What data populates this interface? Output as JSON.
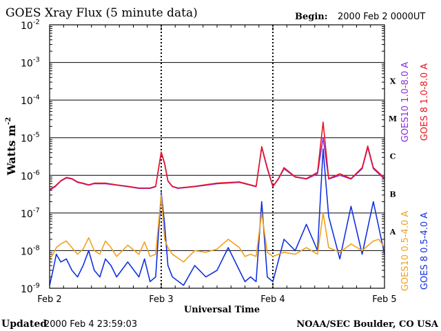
{
  "header": {
    "title": "GOES Xray Flux (5 minute data)",
    "begin_label": "Begin:",
    "begin_value": "2000 Feb 2 0000UT"
  },
  "footer": {
    "updated_label": "Updated",
    "updated_value": "2000 Feb  4 23:59:03",
    "credit": "NOAA/SEC Boulder, CO USA"
  },
  "colors": {
    "goes10_long": "#8a2be2",
    "goes8_long": "#e8141e",
    "goes10_short": "#f2a01c",
    "goes8_short": "#1030e0",
    "frame": "#000000",
    "day_divider": "#000000"
  },
  "chart_data": {
    "type": "line",
    "title": "GOES Xray Flux (5 minute data)",
    "xlabel": "Universal Time",
    "ylabel": "Watts m",
    "ylabel_superscript": "-2",
    "yscale": "log",
    "ylim": [
      1e-09,
      0.01
    ],
    "xlim": [
      0,
      3
    ],
    "y_ticks": [
      {
        "base": "10",
        "exp": "-2",
        "value": 0.01
      },
      {
        "base": "10",
        "exp": "-3",
        "value": 0.001
      },
      {
        "base": "10",
        "exp": "-4",
        "value": 0.0001
      },
      {
        "base": "10",
        "exp": "-5",
        "value": 1e-05
      },
      {
        "base": "10",
        "exp": "-6",
        "value": 1e-06
      },
      {
        "base": "10",
        "exp": "-7",
        "value": 1e-07
      },
      {
        "base": "10",
        "exp": "-8",
        "value": 1e-08
      },
      {
        "base": "10",
        "exp": "-9",
        "value": 1e-09
      }
    ],
    "x_ticks": [
      {
        "label": "Feb 2",
        "value": 0
      },
      {
        "label": "Feb 3",
        "value": 1
      },
      {
        "label": "Feb 4",
        "value": 2
      },
      {
        "label": "Feb 5",
        "value": 3
      }
    ],
    "flare_classes": [
      {
        "label": "X",
        "value": 0.00032
      },
      {
        "label": "M",
        "value": 3.2e-05
      },
      {
        "label": "C",
        "value": 3.2e-06
      },
      {
        "label": "B",
        "value": 3.2e-07
      },
      {
        "label": "A",
        "value": 3.2e-08
      }
    ],
    "grid": true,
    "series": [
      {
        "name": "GOES10 1.0-8.0 A",
        "color": "#8a2be2",
        "x": [
          0,
          0.05,
          0.1,
          0.15,
          0.2,
          0.25,
          0.3,
          0.35,
          0.4,
          0.5,
          0.6,
          0.7,
          0.8,
          0.9,
          0.95,
          1.0,
          1.03,
          1.06,
          1.1,
          1.15,
          1.3,
          1.5,
          1.7,
          1.85,
          1.9,
          1.95,
          2.0,
          2.05,
          2.1,
          2.2,
          2.3,
          2.4,
          2.45,
          2.5,
          2.6,
          2.7,
          2.8,
          2.85,
          2.9,
          3.0
        ],
        "y": [
          4e-07,
          5e-07,
          7e-07,
          8.5e-07,
          8e-07,
          6.5e-07,
          6e-07,
          5.5e-07,
          6e-07,
          6e-07,
          5.5e-07,
          5e-07,
          4.5e-07,
          4.5e-07,
          5e-07,
          4e-06,
          2e-06,
          7e-07,
          5e-07,
          4.5e-07,
          5e-07,
          6e-07,
          6.5e-07,
          5e-07,
          5.5e-06,
          1.5e-06,
          5e-07,
          8e-07,
          1.5e-06,
          9e-07,
          8e-07,
          1.1e-06,
          1e-05,
          8e-07,
          1e-06,
          8e-07,
          1.5e-06,
          5.5e-06,
          1.5e-06,
          8e-07
        ]
      },
      {
        "name": "GOES 8 1.0-8.0 A",
        "color": "#e8141e",
        "x": [
          0,
          0.05,
          0.1,
          0.15,
          0.2,
          0.25,
          0.3,
          0.35,
          0.4,
          0.5,
          0.6,
          0.7,
          0.8,
          0.9,
          0.95,
          1.0,
          1.03,
          1.06,
          1.1,
          1.15,
          1.3,
          1.5,
          1.7,
          1.85,
          1.9,
          1.95,
          2.0,
          2.05,
          2.1,
          2.2,
          2.3,
          2.4,
          2.45,
          2.5,
          2.6,
          2.7,
          2.8,
          2.85,
          2.9,
          3.0
        ],
        "y": [
          4.2e-07,
          5.2e-07,
          7.2e-07,
          8.8e-07,
          8.2e-07,
          6.7e-07,
          6.2e-07,
          5.6e-07,
          6.2e-07,
          6.2e-07,
          5.6e-07,
          5.1e-07,
          4.6e-07,
          4.6e-07,
          5.1e-07,
          4.2e-06,
          2.1e-06,
          7.2e-07,
          5.1e-07,
          4.6e-07,
          5.1e-07,
          6.2e-07,
          6.7e-07,
          5.1e-07,
          5.8e-06,
          1.6e-06,
          5.1e-07,
          8.2e-07,
          1.6e-06,
          9.2e-07,
          8.2e-07,
          1.2e-06,
          2.6e-05,
          8.2e-07,
          1.1e-06,
          8.2e-07,
          1.6e-06,
          6e-06,
          1.6e-06,
          8.5e-07
        ]
      },
      {
        "name": "GOES10 0.5-4.0 A",
        "color": "#f2a01c",
        "x": [
          0,
          0.03,
          0.06,
          0.1,
          0.15,
          0.2,
          0.25,
          0.3,
          0.35,
          0.4,
          0.45,
          0.5,
          0.55,
          0.6,
          0.7,
          0.8,
          0.85,
          0.9,
          0.95,
          1.0,
          1.03,
          1.06,
          1.1,
          1.2,
          1.3,
          1.4,
          1.5,
          1.6,
          1.7,
          1.75,
          1.8,
          1.85,
          1.9,
          1.95,
          2.0,
          2.1,
          2.2,
          2.3,
          2.4,
          2.45,
          2.5,
          2.6,
          2.7,
          2.8,
          2.9,
          2.95,
          3.0
        ],
        "y": [
          6e-09,
          8e-09,
          1.2e-08,
          1.5e-08,
          1.8e-08,
          1.2e-08,
          8e-09,
          1.1e-08,
          2.2e-08,
          1e-08,
          8e-09,
          1.8e-08,
          1.2e-08,
          7e-09,
          1.4e-08,
          8e-09,
          1.7e-08,
          7e-09,
          8e-09,
          3e-07,
          2e-08,
          1.2e-08,
          8e-09,
          5e-09,
          1e-08,
          9e-09,
          1.1e-08,
          2e-08,
          1.2e-08,
          7e-09,
          8e-09,
          7e-09,
          1e-07,
          9e-09,
          7e-09,
          9e-09,
          8e-09,
          1.2e-08,
          8e-09,
          1e-07,
          1.2e-08,
          9e-09,
          1.5e-08,
          1e-08,
          1.8e-08,
          2e-08,
          1.2e-08
        ]
      },
      {
        "name": "GOES 8 0.5-4.0 A",
        "color": "#1030e0",
        "x": [
          0,
          0.03,
          0.06,
          0.1,
          0.15,
          0.2,
          0.25,
          0.3,
          0.35,
          0.4,
          0.45,
          0.5,
          0.55,
          0.6,
          0.7,
          0.8,
          0.85,
          0.9,
          0.95,
          1.0,
          1.03,
          1.06,
          1.1,
          1.2,
          1.3,
          1.4,
          1.5,
          1.6,
          1.7,
          1.75,
          1.8,
          1.85,
          1.9,
          1.95,
          2.0,
          2.1,
          2.2,
          2.3,
          2.4,
          2.45,
          2.5,
          2.6,
          2.7,
          2.8,
          2.9,
          2.95,
          3.0
        ],
        "y": [
          1.2e-09,
          3e-09,
          8e-09,
          5e-09,
          6e-09,
          3e-09,
          2e-09,
          4e-09,
          1e-08,
          3e-09,
          2e-09,
          6e-09,
          4e-09,
          2e-09,
          5e-09,
          2e-09,
          6e-09,
          1.5e-09,
          2e-09,
          3.5e-07,
          5e-08,
          4e-09,
          2e-09,
          1.2e-09,
          4e-09,
          2e-09,
          3e-09,
          1.2e-08,
          3e-09,
          1.5e-09,
          2e-09,
          1.5e-09,
          2e-07,
          2e-09,
          1.5e-09,
          2e-08,
          1e-08,
          5e-08,
          1e-08,
          5e-06,
          8e-08,
          6e-09,
          1.5e-07,
          8e-09,
          2e-07,
          4e-08,
          8e-09
        ]
      }
    ],
    "legend": [
      {
        "text": "GOES10 1.0-8.0 A",
        "color": "#8a2be2"
      },
      {
        "text": "GOES 8 1.0-8.0 A",
        "color": "#e8141e"
      },
      {
        "text": "GOES10 0.5-4.0 A",
        "color": "#f2a01c"
      },
      {
        "text": "GOES 8 0.5-4.0 A",
        "color": "#1030e0"
      }
    ],
    "legend_placement": "right, rotated vertical"
  }
}
